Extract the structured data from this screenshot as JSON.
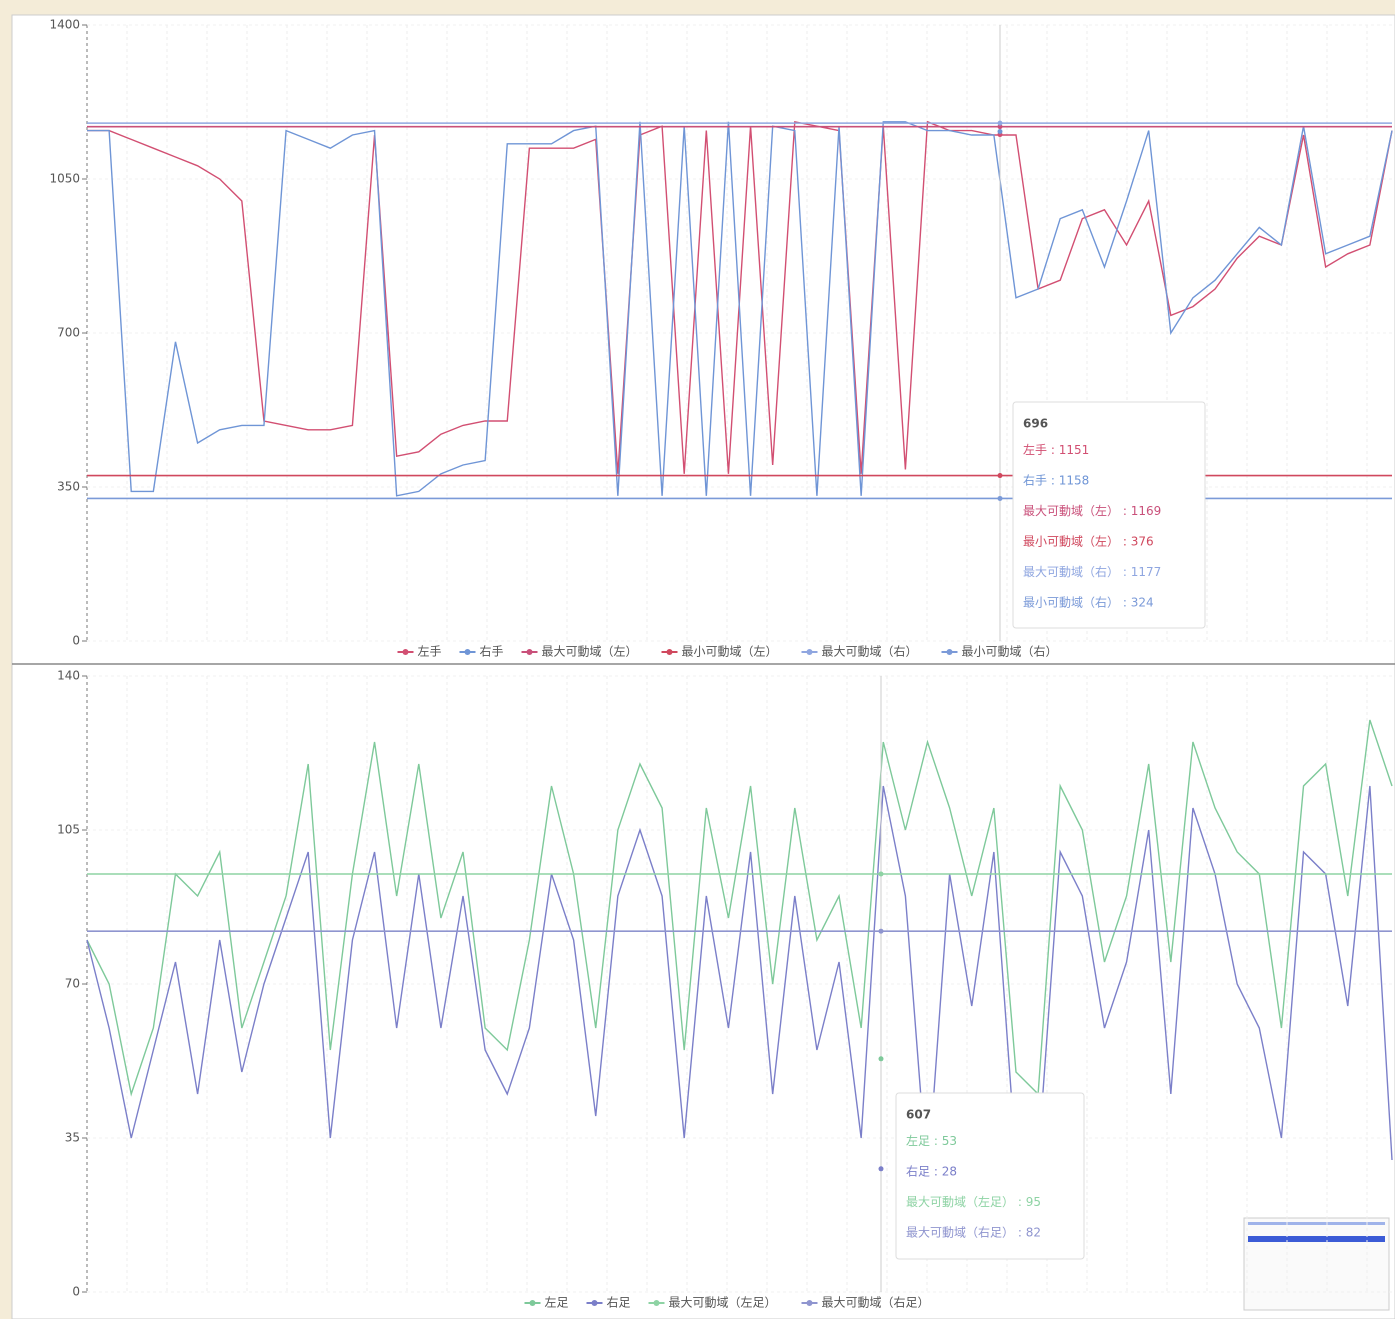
{
  "chart_data": [
    {
      "type": "line",
      "ylim": [
        0,
        1400
      ],
      "yticks": [
        0,
        350,
        700,
        1050,
        1400
      ],
      "series": [
        {
          "name": "左手",
          "color": "#d24f72",
          "values": [
            1160,
            1160,
            1140,
            1120,
            1100,
            1080,
            1050,
            1000,
            500,
            490,
            480,
            480,
            490,
            1150,
            420,
            430,
            470,
            490,
            500,
            500,
            1120,
            1120,
            1120,
            1140,
            380,
            1150,
            1170,
            380,
            1160,
            380,
            1170,
            400,
            1180,
            1170,
            1160,
            380,
            1170,
            390,
            1180,
            1160,
            1160,
            1150,
            1150,
            800,
            820,
            960,
            980,
            900,
            1000,
            740,
            760,
            800,
            870,
            920,
            900,
            1150,
            850,
            880,
            900,
            1160
          ]
        },
        {
          "name": "右手",
          "color": "#6f95d6",
          "values": [
            1160,
            1160,
            340,
            340,
            680,
            450,
            480,
            490,
            490,
            1160,
            1140,
            1120,
            1150,
            1160,
            330,
            340,
            380,
            400,
            410,
            1130,
            1130,
            1130,
            1160,
            1170,
            330,
            1180,
            330,
            1170,
            330,
            1180,
            330,
            1170,
            1160,
            330,
            1170,
            330,
            1180,
            1180,
            1160,
            1160,
            1150,
            1150,
            780,
            800,
            960,
            980,
            850,
            1000,
            1160,
            700,
            780,
            820,
            880,
            940,
            900,
            1170,
            880,
            900,
            920,
            1160
          ]
        },
        {
          "name": "最大可動域（左）",
          "color": "#c9507a",
          "value": 1169
        },
        {
          "name": "最小可動域（左）",
          "color": "#d0485e",
          "value": 376
        },
        {
          "name": "最大可動域（右）",
          "color": "#8fa6e0",
          "value": 1177
        },
        {
          "name": "最小可動域（右）",
          "color": "#7b9ad8",
          "value": 324
        }
      ],
      "tooltip": {
        "x": 696,
        "separator": " : ",
        "values": [
          1151,
          1158,
          1169,
          376,
          1177,
          324
        ]
      }
    },
    {
      "type": "line",
      "ylim": [
        0,
        140
      ],
      "yticks": [
        0,
        35,
        70,
        105,
        140
      ],
      "series": [
        {
          "name": "左足",
          "color": "#7ec99a",
          "values": [
            80,
            70,
            45,
            60,
            95,
            90,
            100,
            60,
            75,
            90,
            120,
            55,
            95,
            125,
            90,
            120,
            85,
            100,
            60,
            55,
            80,
            115,
            95,
            60,
            105,
            120,
            110,
            55,
            110,
            85,
            115,
            70,
            110,
            80,
            90,
            60,
            125,
            105,
            125,
            110,
            90,
            110,
            50,
            45,
            115,
            105,
            75,
            90,
            120,
            75,
            125,
            110,
            100,
            95,
            60,
            115,
            120,
            90,
            130,
            115
          ]
        },
        {
          "name": "右足",
          "color": "#7b7fc9",
          "values": [
            80,
            60,
            35,
            55,
            75,
            45,
            80,
            50,
            70,
            85,
            100,
            35,
            80,
            100,
            60,
            95,
            60,
            90,
            55,
            45,
            60,
            95,
            80,
            40,
            90,
            105,
            90,
            35,
            90,
            60,
            100,
            45,
            90,
            55,
            75,
            35,
            115,
            90,
            25,
            95,
            65,
            100,
            30,
            30,
            100,
            90,
            60,
            75,
            105,
            45,
            110,
            95,
            70,
            60,
            35,
            100,
            95,
            65,
            115,
            30
          ]
        },
        {
          "name": "最大可動域（左足）",
          "color": "#8ed3a4",
          "value": 95
        },
        {
          "name": "最大可動域（右足）",
          "color": "#8f95cf",
          "value": 82
        }
      ],
      "tooltip": {
        "x": 607,
        "separator": " : ",
        "values": [
          53,
          28,
          95,
          82
        ]
      }
    }
  ]
}
